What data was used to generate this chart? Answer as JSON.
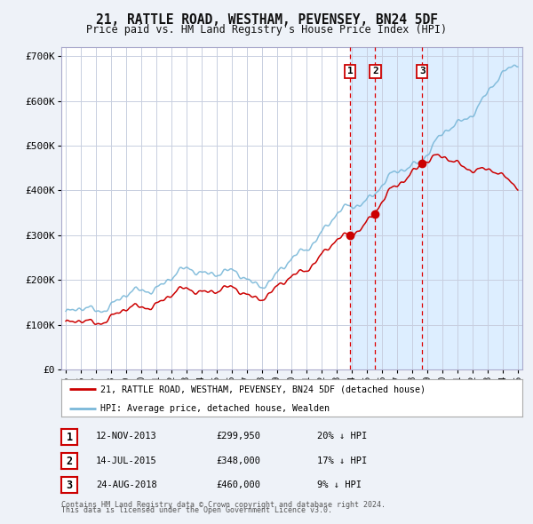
{
  "title": "21, RATTLE ROAD, WESTHAM, PEVENSEY, BN24 5DF",
  "subtitle": "Price paid vs. HM Land Registry's House Price Index (HPI)",
  "legend_red": "21, RATTLE ROAD, WESTHAM, PEVENSEY, BN24 5DF (detached house)",
  "legend_blue": "HPI: Average price, detached house, Wealden",
  "sale_dates_num": [
    2013.87,
    2015.54,
    2018.65
  ],
  "sale_prices": [
    299950,
    348000,
    460000
  ],
  "sale_labels": [
    "1",
    "2",
    "3"
  ],
  "sale_info": [
    [
      "1",
      "12-NOV-2013",
      "£299,950",
      "20% ↓ HPI"
    ],
    [
      "2",
      "14-JUL-2015",
      "£348,000",
      "17% ↓ HPI"
    ],
    [
      "3",
      "24-AUG-2018",
      "£460,000",
      "9% ↓ HPI"
    ]
  ],
  "footer1": "Contains HM Land Registry data © Crown copyright and database right 2024.",
  "footer2": "This data is licensed under the Open Government Licence v3.0.",
  "hpi_color": "#7ab8d9",
  "price_color": "#cc0000",
  "shade_color": "#ddeeff",
  "vline_color": "#dd0000",
  "bg_color": "#eef2f8",
  "plot_bg": "#ffffff",
  "grid_color": "#c8cfe0",
  "ylim": [
    0,
    720000
  ],
  "yticks": [
    0,
    100000,
    200000,
    300000,
    400000,
    500000,
    600000,
    700000
  ],
  "ytick_labels": [
    "£0",
    "£100K",
    "£200K",
    "£300K",
    "£400K",
    "£500K",
    "£600K",
    "£700K"
  ],
  "x_start_year": 1995,
  "x_end_year": 2025
}
